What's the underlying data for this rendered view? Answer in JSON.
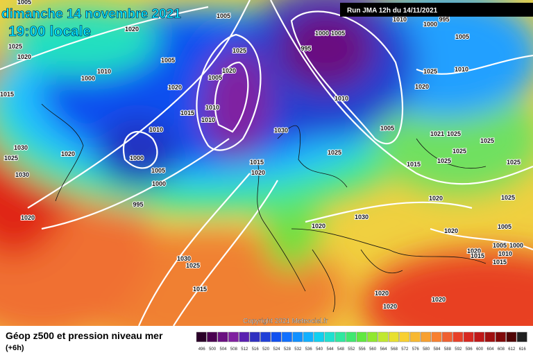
{
  "header": {
    "date": "dimanche 14 novembre 2021",
    "time": "19:00 locale",
    "run": "Run JMA 12h du 14/11/2021"
  },
  "copyright": "Copyright 2021 Meteociel.fr",
  "footer": {
    "title": "Géop z500 et pression niveau mer",
    "step": "(+6h)"
  },
  "scale": {
    "labels": [
      496,
      500,
      504,
      508,
      512,
      516,
      520,
      524,
      528,
      532,
      536,
      540,
      544,
      548,
      552,
      556,
      560,
      564,
      568,
      572,
      576,
      580,
      584,
      588,
      592,
      596,
      600,
      604,
      608,
      612,
      616
    ],
    "colors": [
      "#2a0028",
      "#4a0050",
      "#6a1080",
      "#8020a0",
      "#5a20b0",
      "#3030c0",
      "#2040d8",
      "#1050f0",
      "#1070ff",
      "#1090ff",
      "#10b0ff",
      "#10d0f0",
      "#20e0d0",
      "#30e8a0",
      "#40e870",
      "#60e840",
      "#90e830",
      "#c0e830",
      "#e8e030",
      "#f8d030",
      "#f8b830",
      "#f8a030",
      "#f88030",
      "#f06030",
      "#e84028",
      "#d82820",
      "#c01818",
      "#a01010",
      "#800808",
      "#500404",
      "#202020"
    ]
  },
  "isobar_labels": [
    1005,
    1025,
    1020,
    1015,
    1020,
    1005,
    1010,
    1000,
    1020,
    1015,
    1010,
    1020,
    1000,
    1005,
    1000,
    995,
    1030,
    1025,
    1030,
    1020,
    1005,
    1025,
    1020,
    1005,
    1010,
    1010,
    1030,
    1015,
    1020,
    1000,
    1005,
    995,
    1010,
    1005,
    1025,
    1015,
    1020,
    1020,
    1030,
    1025,
    1020,
    1010,
    1005,
    1000,
    995,
    1010,
    1021,
    1025,
    1025,
    1025,
    1025,
    1025,
    1025,
    1005,
    1020,
    1020,
    1015,
    1005,
    1000,
    1010,
    1015,
    1030,
    1025,
    1015,
    1020,
    1020,
    1020
  ]
}
